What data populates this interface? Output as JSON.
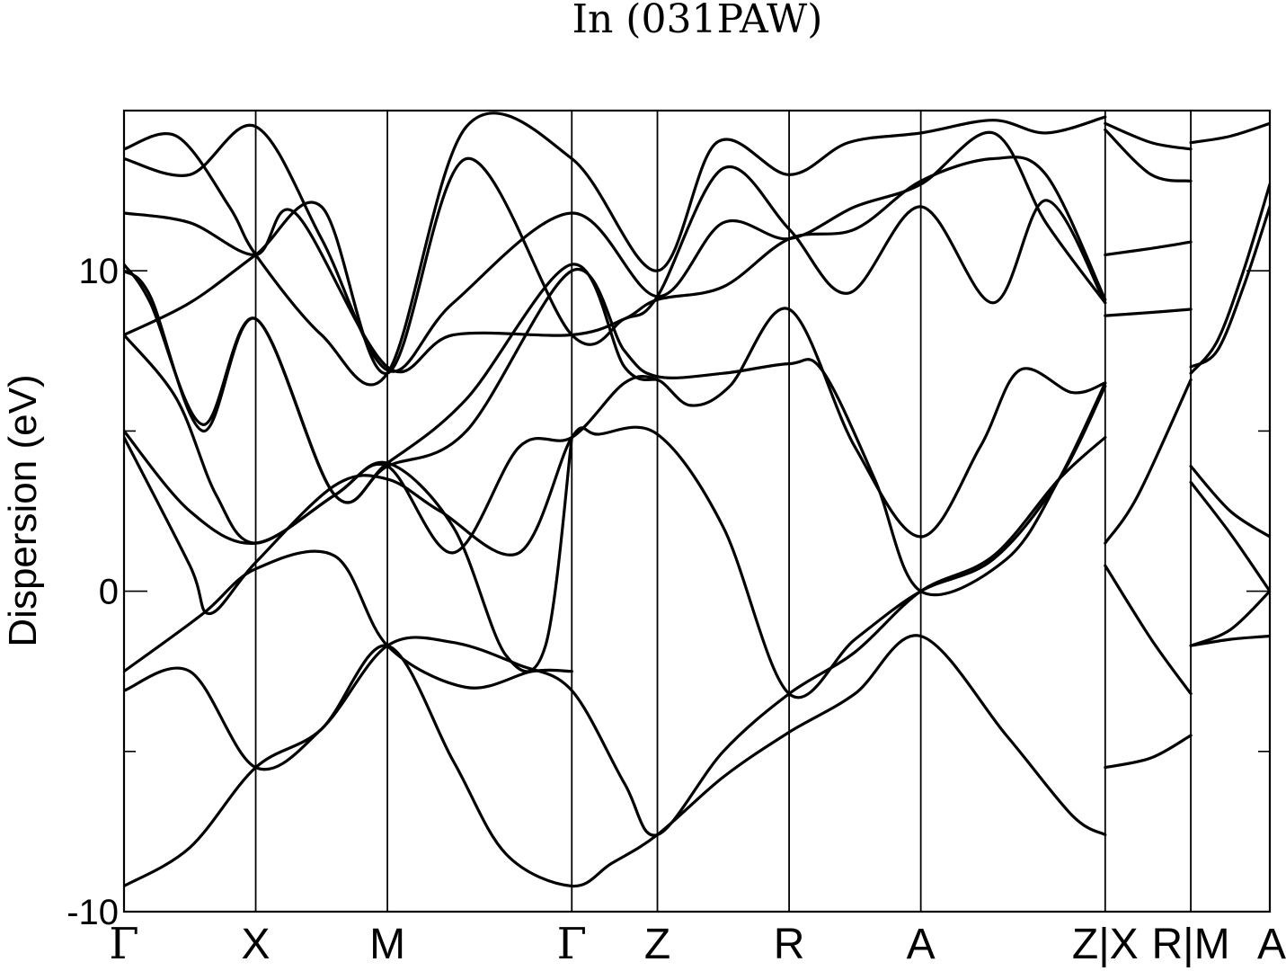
{
  "chart_data": {
    "type": "line",
    "title": "In (031PAW)",
    "xlabel": "",
    "ylabel": "Dispersion (eV)",
    "ylim": [
      -10,
      15
    ],
    "yticks": [
      -10,
      0,
      10
    ],
    "yticks_minor": [
      -5,
      5
    ],
    "grid": false,
    "legend": "none",
    "xlim": [
      0,
      8.7
    ],
    "segment_boundaries": [
      1,
      2,
      3.4,
      4.05,
      5.05,
      6.05,
      7.45,
      8.1,
      8.7
    ],
    "xtick_labels": [
      {
        "x": 0,
        "label": "Γ",
        "serif": true
      },
      {
        "x": 1,
        "label": "X",
        "serif": false
      },
      {
        "x": 2,
        "label": "M",
        "serif": false
      },
      {
        "x": 3.4,
        "label": "Γ",
        "serif": true
      },
      {
        "x": 4.05,
        "label": "Z",
        "serif": false
      },
      {
        "x": 5.05,
        "label": "R",
        "serif": false
      },
      {
        "x": 6.05,
        "label": "A",
        "serif": false
      },
      {
        "x": 7.45,
        "label": "Z|X",
        "serif": false
      },
      {
        "x": 8.1,
        "label": "R|M",
        "serif": false
      },
      {
        "x": 8.7,
        "label": "A",
        "serif": false
      }
    ],
    "series": [
      {
        "values": [
          [
            0,
            -9.2
          ],
          [
            0.5,
            -8.0
          ],
          [
            1,
            -5.5
          ],
          [
            1.5,
            -4.3
          ],
          [
            2,
            -1.7
          ],
          [
            2.5,
            -5.3
          ],
          [
            2.9,
            -8.2
          ],
          [
            3.4,
            -9.2
          ],
          [
            3.7,
            -8.5
          ],
          [
            4.05,
            -7.6
          ],
          [
            4.55,
            -5.8
          ],
          [
            5.05,
            -4.4
          ],
          [
            5.55,
            -3.2
          ],
          [
            6.05,
            -1.4
          ],
          [
            6.7,
            -4.5
          ],
          [
            7.2,
            -7.0
          ],
          [
            7.45,
            -7.6
          ]
        ]
      },
      {
        "values": [
          [
            0,
            -3.1
          ],
          [
            0.5,
            -2.5
          ],
          [
            1,
            -5.5
          ],
          [
            1.5,
            -4.3
          ],
          [
            2,
            -1.7
          ],
          [
            2.5,
            -1.6
          ],
          [
            3,
            -2.3
          ],
          [
            3.4,
            -3.1
          ],
          [
            3.8,
            -6.0
          ],
          [
            4.05,
            -7.6
          ],
          [
            4.55,
            -5.0
          ],
          [
            5.05,
            -3.2
          ],
          [
            5.55,
            -1.9
          ],
          [
            6.05,
            0.0
          ],
          [
            6.6,
            1.1
          ],
          [
            7.1,
            3.5
          ],
          [
            7.45,
            4.8
          ]
        ]
      },
      {
        "values": [
          [
            0,
            -2.5
          ],
          [
            0.6,
            -0.7
          ],
          [
            1,
            0.7
          ],
          [
            1.6,
            1.1
          ],
          [
            2,
            -1.7
          ],
          [
            2.6,
            -3.0
          ],
          [
            3.1,
            -2.5
          ],
          [
            3.4,
            -2.5
          ]
        ]
      },
      {
        "values": [
          [
            0,
            4.8
          ],
          [
            0.5,
            0.8
          ],
          [
            0.65,
            -0.7
          ],
          [
            1,
            0.9
          ],
          [
            1.6,
            3.3
          ],
          [
            2,
            3.5
          ],
          [
            2.4,
            2.5
          ],
          [
            3.0,
            1.2
          ],
          [
            3.4,
            4.8
          ],
          [
            3.6,
            4.9
          ],
          [
            4.05,
            4.9
          ],
          [
            4.55,
            2.0
          ],
          [
            5.05,
            -3.2
          ],
          [
            5.55,
            -1.5
          ],
          [
            6.05,
            0.0
          ],
          [
            6.6,
            1.0
          ],
          [
            7.1,
            3.5
          ],
          [
            7.45,
            6.4
          ]
        ]
      },
      {
        "values": [
          [
            0,
            5.0
          ],
          [
            0.5,
            2.5
          ],
          [
            1,
            1.5
          ],
          [
            1.6,
            3.0
          ],
          [
            2,
            3.9
          ],
          [
            2.5,
            1.2
          ],
          [
            3.0,
            4.5
          ],
          [
            3.4,
            4.8
          ],
          [
            3.8,
            6.5
          ],
          [
            4.05,
            6.6
          ],
          [
            4.3,
            5.8
          ],
          [
            4.6,
            6.4
          ],
          [
            5.05,
            8.8
          ],
          [
            5.55,
            4.5
          ],
          [
            6.05,
            1.7
          ],
          [
            6.5,
            4.5
          ],
          [
            6.8,
            6.9
          ],
          [
            7.2,
            6.2
          ],
          [
            7.45,
            6.5
          ]
        ]
      },
      {
        "values": [
          [
            0,
            8.0
          ],
          [
            0.4,
            6.0
          ],
          [
            0.7,
            3.0
          ],
          [
            1,
            1.5
          ],
          [
            1.6,
            3.0
          ],
          [
            2,
            4.0
          ],
          [
            2.5,
            2.0
          ],
          [
            2.9,
            -2.0
          ],
          [
            3.2,
            -1.7
          ],
          [
            3.4,
            4.8
          ]
        ]
      },
      {
        "values": [
          [
            0,
            10.0
          ],
          [
            0.2,
            9.2
          ],
          [
            0.6,
            5.0
          ],
          [
            1,
            8.5
          ],
          [
            1.6,
            3.0
          ],
          [
            2,
            3.9
          ],
          [
            2.6,
            5.0
          ],
          [
            3.4,
            10.0
          ],
          [
            3.8,
            7.5
          ],
          [
            4.05,
            6.7
          ],
          [
            4.55,
            6.8
          ],
          [
            5.05,
            7.1
          ],
          [
            5.3,
            6.9
          ],
          [
            5.7,
            3.5
          ],
          [
            6.05,
            0.0
          ],
          [
            6.7,
            1.0
          ],
          [
            7.1,
            3.5
          ],
          [
            7.45,
            6.5
          ]
        ]
      },
      {
        "values": [
          [
            0,
            10.2
          ],
          [
            0.2,
            9.0
          ],
          [
            0.6,
            5.2
          ],
          [
            1,
            8.5
          ],
          [
            1.6,
            3.0
          ],
          [
            2,
            4.0
          ],
          [
            2.6,
            6.0
          ],
          [
            3.4,
            10.2
          ],
          [
            3.8,
            7.0
          ],
          [
            4.05,
            6.6
          ]
        ]
      },
      {
        "values": [
          [
            0,
            11.8
          ],
          [
            0.5,
            11.5
          ],
          [
            1,
            10.5
          ],
          [
            1.3,
            11.8
          ],
          [
            2,
            7.0
          ],
          [
            2.5,
            8.0
          ],
          [
            3.4,
            8.0
          ],
          [
            3.8,
            8.5
          ],
          [
            4.05,
            9.1
          ],
          [
            4.55,
            9.5
          ],
          [
            5.05,
            11.0
          ],
          [
            5.55,
            11.3
          ],
          [
            6.05,
            12.8
          ],
          [
            6.6,
            13.5
          ],
          [
            7.0,
            13.0
          ],
          [
            7.45,
            9.1
          ]
        ]
      },
      {
        "values": [
          [
            0,
            8.0
          ],
          [
            0.5,
            9.0
          ],
          [
            1,
            10.5
          ],
          [
            1.5,
            12.0
          ],
          [
            2,
            6.8
          ],
          [
            2.6,
            13.5
          ],
          [
            3.4,
            8.0
          ],
          [
            3.8,
            8.5
          ],
          [
            4.05,
            9.2
          ],
          [
            4.55,
            13.2
          ],
          [
            5.05,
            11.3
          ],
          [
            5.5,
            9.3
          ],
          [
            6.05,
            12.0
          ],
          [
            6.6,
            9.0
          ],
          [
            7.0,
            12.2
          ],
          [
            7.45,
            9.0
          ]
        ]
      },
      {
        "values": [
          [
            0,
            13.5
          ],
          [
            0.5,
            13.0
          ],
          [
            1,
            14.5
          ],
          [
            1.5,
            11.0
          ],
          [
            2,
            6.9
          ],
          [
            2.5,
            9.0
          ],
          [
            3.4,
            11.8
          ],
          [
            4.05,
            9.2
          ],
          [
            4.55,
            11.5
          ],
          [
            5.05,
            11.0
          ],
          [
            5.55,
            12.0
          ],
          [
            6.05,
            12.7
          ],
          [
            6.6,
            14.3
          ],
          [
            7.0,
            11.5
          ],
          [
            7.45,
            9.0
          ]
        ]
      },
      {
        "values": [
          [
            0,
            13.8
          ],
          [
            0.4,
            14.2
          ],
          [
            0.8,
            12.0
          ],
          [
            1,
            10.5
          ],
          [
            1.5,
            8.0
          ],
          [
            2,
            6.8
          ],
          [
            2.6,
            14.5
          ],
          [
            3.4,
            13.5
          ],
          [
            4.05,
            10.0
          ],
          [
            4.5,
            14.0
          ],
          [
            5.05,
            13.0
          ],
          [
            5.5,
            14.0
          ],
          [
            6.05,
            14.3
          ],
          [
            6.6,
            14.7
          ],
          [
            7.0,
            14.3
          ],
          [
            7.45,
            14.8
          ]
        ]
      },
      {
        "values": [
          [
            7.45,
            10.5
          ],
          [
            7.8,
            10.7
          ],
          [
            8.1,
            10.9
          ]
        ]
      },
      {
        "values": [
          [
            7.45,
            8.6
          ],
          [
            7.8,
            8.7
          ],
          [
            8.1,
            8.8
          ]
        ]
      },
      {
        "values": [
          [
            7.45,
            1.5
          ],
          [
            7.7,
            3.0
          ],
          [
            8.1,
            6.6
          ]
        ]
      },
      {
        "values": [
          [
            7.45,
            0.8
          ],
          [
            7.8,
            -1.5
          ],
          [
            8.1,
            -3.2
          ]
        ]
      },
      {
        "values": [
          [
            7.45,
            -5.5
          ],
          [
            7.8,
            -5.2
          ],
          [
            8.1,
            -4.5
          ]
        ]
      },
      {
        "values": [
          [
            8.1,
            7.0
          ],
          [
            8.3,
            7.5
          ],
          [
            8.5,
            9.5
          ],
          [
            8.7,
            12.0
          ]
        ]
      },
      {
        "values": [
          [
            8.1,
            6.8
          ],
          [
            8.3,
            7.8
          ],
          [
            8.5,
            10.0
          ],
          [
            8.7,
            12.7
          ]
        ]
      },
      {
        "values": [
          [
            8.1,
            3.9
          ],
          [
            8.4,
            2.5
          ],
          [
            8.7,
            1.7
          ]
        ]
      },
      {
        "values": [
          [
            8.1,
            3.4
          ],
          [
            8.4,
            1.8
          ],
          [
            8.7,
            0.0
          ]
        ]
      },
      {
        "values": [
          [
            8.1,
            -1.7
          ],
          [
            8.4,
            -1.5
          ],
          [
            8.7,
            -1.4
          ]
        ]
      },
      {
        "values": [
          [
            8.1,
            -1.7
          ],
          [
            8.4,
            -1.2
          ],
          [
            8.7,
            0.0
          ]
        ]
      },
      {
        "values": [
          [
            7.45,
            14.6
          ],
          [
            7.8,
            14.0
          ],
          [
            8.1,
            13.8
          ]
        ]
      },
      {
        "values": [
          [
            7.45,
            14.4
          ],
          [
            7.8,
            13.0
          ],
          [
            8.1,
            12.8
          ]
        ]
      },
      {
        "values": [
          [
            8.1,
            14.0
          ],
          [
            8.4,
            14.2
          ],
          [
            8.7,
            14.6
          ]
        ]
      }
    ]
  }
}
